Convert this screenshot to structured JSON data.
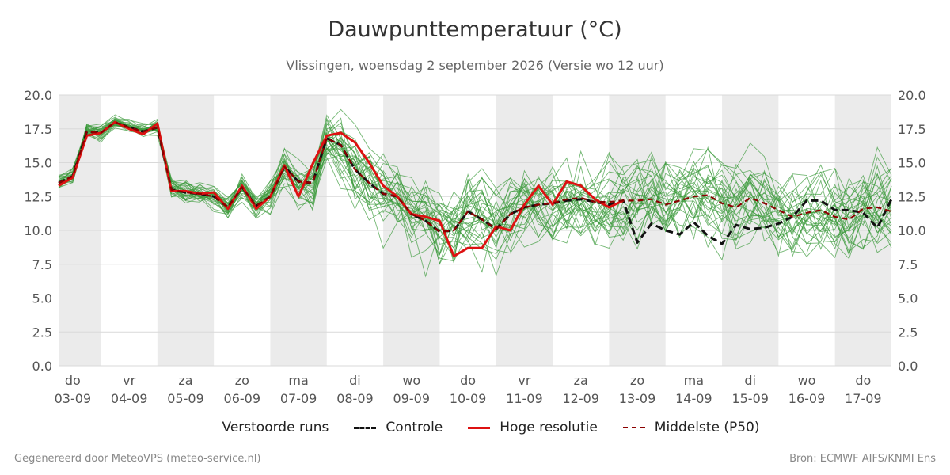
{
  "header": {
    "title": "Dauwpunttemperatuur (°C)",
    "subtitle": "Vlissingen, woensdag  2 september 2026 (Versie wo 12 uur)"
  },
  "footer": {
    "left": "Gegenereerd door MeteoVPS (meteo-service.nl)",
    "right": "Bron: ECMWF AIFS/KNMI Ens"
  },
  "legend": [
    {
      "label": "Verstoorde runs",
      "color": "#3a9a3a",
      "style": "thin-solid"
    },
    {
      "label": "Controle",
      "color": "#111111",
      "style": "dashed"
    },
    {
      "label": "Hoge resolutie",
      "color": "#dd1111",
      "style": "thick-solid"
    },
    {
      "label": "Middelste (P50)",
      "color": "#8b0000",
      "style": "dashed"
    }
  ],
  "chart_data": {
    "type": "line",
    "title": "Dauwpunttemperatuur (°C)",
    "subtitle": "Vlissingen, woensdag  2 september 2026 (Versie wo 12 uur)",
    "ylim": [
      0,
      20
    ],
    "xlim": [
      -0.25,
      14.5
    ],
    "yticks": [
      "0.0",
      "2.5",
      "5.0",
      "7.5",
      "10.0",
      "12.5",
      "15.0",
      "17.5",
      "20.0"
    ],
    "xticks": [
      {
        "day": "do",
        "date": "03-09"
      },
      {
        "day": "vr",
        "date": "04-09"
      },
      {
        "day": "za",
        "date": "05-09"
      },
      {
        "day": "zo",
        "date": "06-09"
      },
      {
        "day": "ma",
        "date": "07-09"
      },
      {
        "day": "di",
        "date": "08-09"
      },
      {
        "day": "wo",
        "date": "09-09"
      },
      {
        "day": "do",
        "date": "10-09"
      },
      {
        "day": "vr",
        "date": "11-09"
      },
      {
        "day": "za",
        "date": "12-09"
      },
      {
        "day": "zo",
        "date": "13-09"
      },
      {
        "day": "ma",
        "date": "14-09"
      },
      {
        "day": "di",
        "date": "15-09"
      },
      {
        "day": "wo",
        "date": "16-09"
      },
      {
        "day": "do",
        "date": "17-09"
      }
    ],
    "shaded_days": [
      0,
      2,
      4,
      6,
      8,
      10,
      12,
      14
    ],
    "grid": true,
    "legend_position": "bottom",
    "series": [
      {
        "name": "Controle",
        "color": "#111111",
        "x": [
          -0.25,
          -0.0,
          0.25,
          0.5,
          0.75,
          1.0,
          1.25,
          1.5,
          1.75,
          2.0,
          2.25,
          2.5,
          2.75,
          3.0,
          3.25,
          3.5,
          3.75,
          4.0,
          4.25,
          4.5,
          4.75,
          5.0,
          5.25,
          5.5,
          5.75,
          6.0,
          6.25,
          6.5,
          6.75,
          7.0,
          7.25,
          7.5,
          7.75,
          8.0,
          8.25,
          8.5,
          8.75,
          9.0,
          9.25,
          9.5,
          9.75,
          10.0,
          10.25,
          10.5,
          10.75,
          11.0,
          11.25,
          11.5,
          11.75,
          12.0,
          12.25,
          12.5,
          12.75,
          13.0,
          13.25,
          13.5,
          13.75,
          14.0,
          14.25,
          14.5
        ],
        "y": [
          13.5,
          14.0,
          17.3,
          17.2,
          18.0,
          17.6,
          17.3,
          17.6,
          13.0,
          12.8,
          12.7,
          12.5,
          11.7,
          13.2,
          11.8,
          12.5,
          14.7,
          13.6,
          13.5,
          16.8,
          16.3,
          14.5,
          13.5,
          12.7,
          12.5,
          11.2,
          10.7,
          9.9,
          10.0,
          11.4,
          10.8,
          10.1,
          11.2,
          11.7,
          11.9,
          12.0,
          12.2,
          12.3,
          12.1,
          11.9,
          12.2,
          9.1,
          10.5,
          10.0,
          9.7,
          10.6,
          9.6,
          9.0,
          10.4,
          10.1,
          10.2,
          10.5,
          11.0,
          12.2,
          12.2,
          11.5,
          11.5,
          11.3,
          10.2,
          12.3
        ]
      },
      {
        "name": "Hoge resolutie",
        "color": "#dd1111",
        "x": [
          -0.25,
          -0.0,
          0.25,
          0.5,
          0.75,
          1.0,
          1.25,
          1.5,
          1.75,
          2.0,
          2.25,
          2.5,
          2.75,
          3.0,
          3.25,
          3.5,
          3.75,
          4.0,
          4.25,
          4.5,
          4.75,
          5.0,
          5.25,
          5.5,
          5.75,
          6.0,
          6.25,
          6.5,
          6.75,
          7.0,
          7.25,
          7.5,
          7.75,
          8.0,
          8.25,
          8.5,
          8.75,
          9.0,
          9.25,
          9.5,
          9.75
        ],
        "y": [
          13.3,
          13.9,
          17.0,
          17.2,
          18.0,
          17.5,
          17.1,
          17.9,
          12.9,
          12.9,
          12.7,
          12.8,
          11.6,
          13.3,
          11.6,
          12.5,
          14.8,
          12.5,
          14.9,
          17.0,
          17.2,
          16.5,
          15.0,
          13.3,
          12.5,
          11.2,
          11.0,
          10.7,
          8.1,
          8.7,
          8.7,
          10.3,
          10.0,
          11.9,
          13.3,
          11.9,
          13.6,
          13.3,
          12.3,
          11.7,
          12.2
        ]
      },
      {
        "name": "Middelste (P50)",
        "color": "#8b0000",
        "x": [
          -0.25,
          -0.0,
          0.25,
          0.5,
          0.75,
          1.0,
          1.25,
          1.5,
          1.75,
          2.0,
          2.25,
          2.5,
          2.75,
          3.0,
          3.25,
          3.5,
          3.75,
          4.0,
          4.25,
          4.5,
          4.75,
          5.0,
          5.25,
          5.5,
          5.75,
          6.0,
          6.25,
          6.5,
          6.75,
          7.0,
          7.25,
          7.5,
          7.75,
          8.0,
          8.25,
          8.5,
          8.75,
          9.0,
          9.25,
          9.5,
          9.75,
          10.0,
          10.25,
          10.5,
          10.75,
          11.0,
          11.25,
          11.5,
          11.75,
          12.0,
          12.25,
          12.5,
          12.75,
          13.0,
          13.25,
          13.5,
          13.75,
          14.0,
          14.25,
          14.5
        ],
        "y": [
          13.5,
          14.0,
          17.3,
          17.2,
          18.0,
          17.6,
          17.3,
          17.6,
          13.0,
          12.8,
          12.7,
          12.5,
          11.7,
          13.2,
          11.8,
          12.5,
          14.7,
          13.6,
          13.5,
          16.8,
          16.3,
          14.5,
          13.5,
          12.7,
          12.5,
          11.2,
          10.7,
          9.9,
          10.0,
          11.4,
          10.8,
          10.1,
          11.2,
          11.7,
          11.9,
          12.0,
          12.3,
          12.4,
          12.1,
          12.1,
          12.2,
          12.2,
          12.3,
          11.9,
          12.2,
          12.5,
          12.6,
          12.0,
          11.7,
          12.4,
          12.0,
          11.5,
          11.0,
          11.3,
          11.5,
          11.0,
          10.8,
          11.6,
          11.7,
          11.4
        ]
      }
    ],
    "ensemble": {
      "name": "Verstoorde runs",
      "color": "#3a9a3a",
      "members": 30,
      "x": [
        -0.25,
        -0.0,
        0.25,
        0.5,
        0.75,
        1.0,
        1.25,
        1.5,
        1.75,
        2.0,
        2.25,
        2.5,
        2.75,
        3.0,
        3.25,
        3.5,
        3.75,
        4.0,
        4.25,
        4.5,
        4.75,
        5.0,
        5.25,
        5.5,
        5.75,
        6.0,
        6.25,
        6.5,
        6.75,
        7.0,
        7.25,
        7.5,
        7.75,
        8.0,
        8.25,
        8.5,
        8.75,
        9.0,
        9.25,
        9.5,
        9.75,
        10.0,
        10.25,
        10.5,
        10.75,
        11.0,
        11.25,
        11.5,
        11.75,
        12.0,
        12.25,
        12.5,
        12.75,
        13.0,
        13.25,
        13.5,
        13.75,
        14.0,
        14.25,
        14.5
      ],
      "center": [
        13.5,
        14.0,
        17.3,
        17.2,
        18.0,
        17.6,
        17.3,
        17.6,
        13.0,
        12.8,
        12.7,
        12.5,
        11.7,
        13.2,
        11.8,
        12.5,
        14.7,
        13.6,
        13.5,
        16.8,
        16.3,
        14.5,
        13.5,
        12.7,
        12.5,
        11.2,
        10.7,
        9.9,
        10.0,
        11.4,
        10.8,
        10.1,
        11.2,
        11.7,
        11.9,
        12.0,
        12.3,
        12.4,
        12.1,
        12.1,
        12.2,
        12.2,
        12.3,
        11.9,
        12.2,
        12.5,
        12.6,
        12.0,
        11.7,
        12.4,
        12.0,
        11.5,
        11.0,
        11.3,
        11.5,
        11.0,
        10.8,
        11.6,
        11.7,
        11.4
      ],
      "spread": [
        0.8,
        0.7,
        0.6,
        0.6,
        0.5,
        0.5,
        0.6,
        0.8,
        1.0,
        0.9,
        0.9,
        1.0,
        1.0,
        1.0,
        1.0,
        1.5,
        1.8,
        2.0,
        2.5,
        2.6,
        2.8,
        3.0,
        3.0,
        3.0,
        3.0,
        3.2,
        3.2,
        3.2,
        3.2,
        3.2,
        3.3,
        3.3,
        3.3,
        3.3,
        3.3,
        3.3,
        3.3,
        3.3,
        3.3,
        3.3,
        3.3,
        3.3,
        3.3,
        3.3,
        3.3,
        3.3,
        3.3,
        3.3,
        3.3,
        3.3,
        3.3,
        3.5,
        3.5,
        3.5,
        3.5,
        3.5,
        3.5,
        3.5,
        3.5,
        3.5
      ]
    }
  }
}
